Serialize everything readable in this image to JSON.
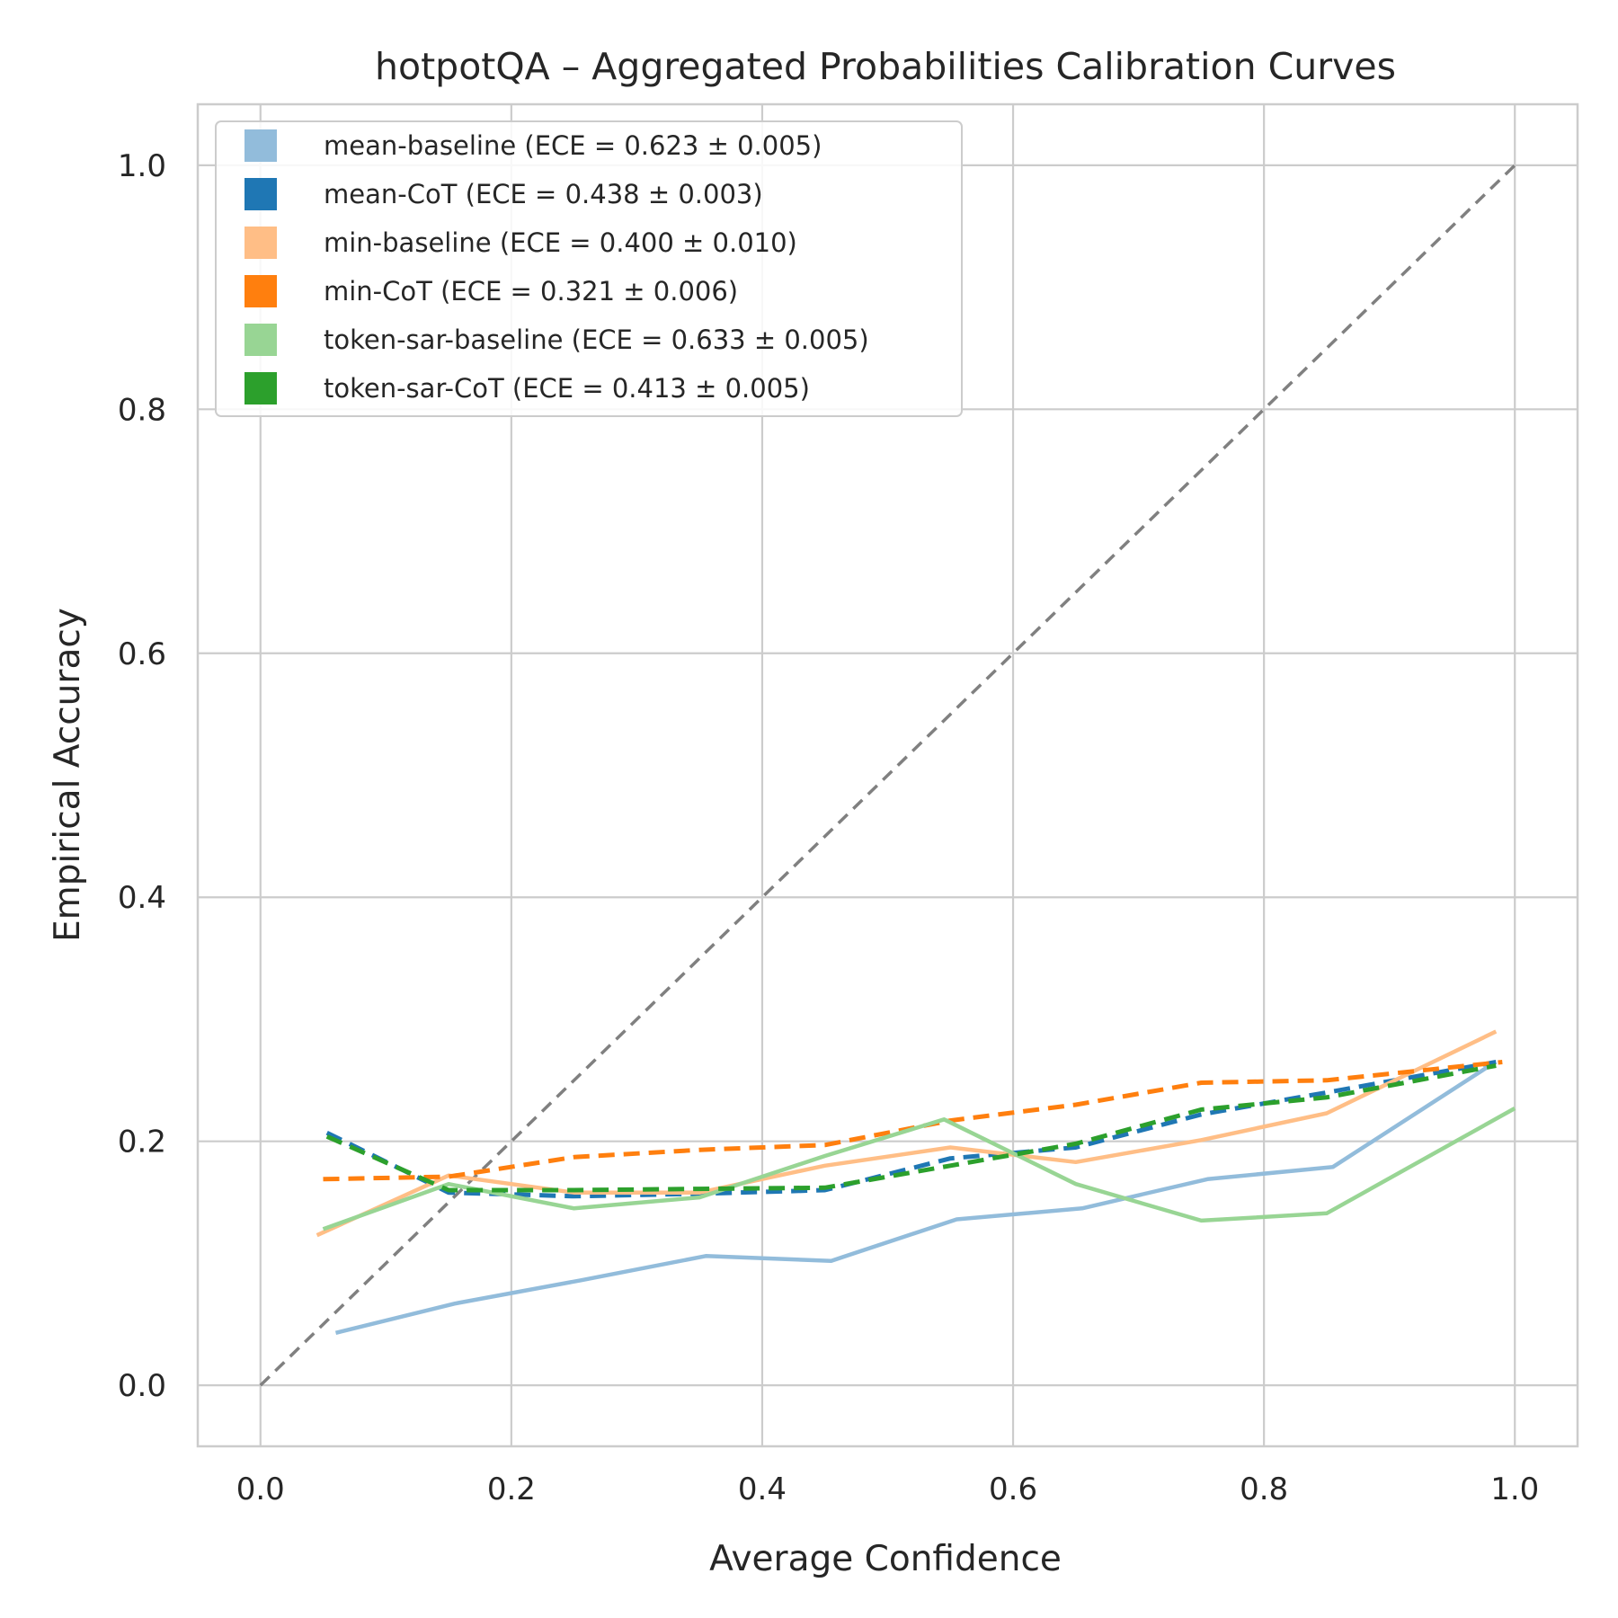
{
  "chart_data": {
    "type": "line",
    "title": "hotpotQA – Aggregated Probabilities Calibration Curves",
    "xlabel": "Average Confidence",
    "ylabel": "Empirical Accuracy",
    "xlim": [
      -0.05,
      1.05
    ],
    "ylim": [
      -0.05,
      1.05
    ],
    "xticks": [
      "0.0",
      "0.2",
      "0.4",
      "0.6",
      "0.8",
      "1.0"
    ],
    "yticks": [
      "0.0",
      "0.2",
      "0.4",
      "0.6",
      "0.8",
      "1.0"
    ],
    "grid": true,
    "legend_position": "top-left",
    "reference_line": {
      "x": [
        0,
        1
      ],
      "y": [
        0,
        1
      ],
      "color": "#808080",
      "style": "dashed"
    },
    "series": [
      {
        "name": "mean-baseline (ECE = 0.623 ± 0.005)",
        "color": "#92bcdb",
        "style": "solid",
        "x": [
          0.06,
          0.155,
          0.255,
          0.355,
          0.455,
          0.555,
          0.655,
          0.755,
          0.855,
          0.98
        ],
        "y": [
          0.043,
          0.067,
          0.086,
          0.106,
          0.102,
          0.136,
          0.145,
          0.169,
          0.179,
          0.262
        ]
      },
      {
        "name": "mean-CoT (ECE = 0.438 ± 0.003)",
        "color": "#1f77b4",
        "style": "dashed",
        "x": [
          0.053,
          0.15,
          0.25,
          0.35,
          0.45,
          0.55,
          0.65,
          0.75,
          0.85,
          0.985
        ],
        "y": [
          0.207,
          0.158,
          0.155,
          0.157,
          0.16,
          0.186,
          0.195,
          0.222,
          0.24,
          0.265
        ]
      },
      {
        "name": "min-baseline (ECE = 0.400 ± 0.010)",
        "color": "#ffbe86",
        "style": "solid",
        "x": [
          0.045,
          0.15,
          0.25,
          0.35,
          0.45,
          0.55,
          0.65,
          0.75,
          0.85,
          0.985
        ],
        "y": [
          0.123,
          0.172,
          0.158,
          0.158,
          0.18,
          0.195,
          0.183,
          0.201,
          0.223,
          0.29
        ]
      },
      {
        "name": "min-CoT (ECE = 0.321 ± 0.006)",
        "color": "#ff7f0e",
        "style": "dashed",
        "x": [
          0.05,
          0.15,
          0.25,
          0.35,
          0.45,
          0.55,
          0.65,
          0.75,
          0.85,
          0.99
        ],
        "y": [
          0.169,
          0.171,
          0.187,
          0.193,
          0.197,
          0.217,
          0.23,
          0.248,
          0.25,
          0.265
        ]
      },
      {
        "name": "token-sar-baseline (ECE = 0.633 ± 0.005)",
        "color": "#98d594",
        "style": "solid",
        "x": [
          0.05,
          0.15,
          0.25,
          0.35,
          0.45,
          0.545,
          0.65,
          0.75,
          0.85,
          1.0
        ],
        "y": [
          0.128,
          0.165,
          0.145,
          0.154,
          0.188,
          0.218,
          0.165,
          0.135,
          0.141,
          0.227
        ]
      },
      {
        "name": "token-sar-CoT (ECE = 0.413 ± 0.005)",
        "color": "#2ca02c",
        "style": "dashed",
        "x": [
          0.053,
          0.15,
          0.25,
          0.35,
          0.45,
          0.55,
          0.65,
          0.75,
          0.85,
          0.985
        ],
        "y": [
          0.204,
          0.16,
          0.16,
          0.161,
          0.162,
          0.18,
          0.198,
          0.226,
          0.236,
          0.262
        ]
      }
    ]
  }
}
